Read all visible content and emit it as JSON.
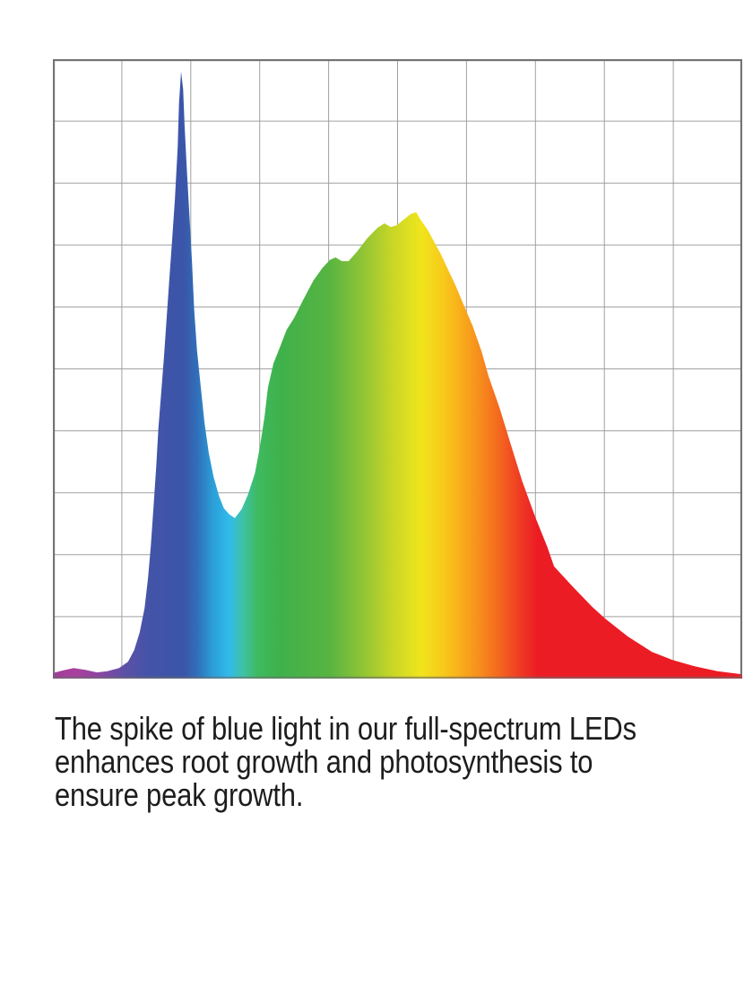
{
  "page": {
    "background": "#ffffff"
  },
  "caption": {
    "lines": [
      "The spike of blue light in our full-spectrum LEDs",
      "enhances root growth and photosynthesis to",
      "ensure peak growth."
    ],
    "color": "#1d1d1d"
  },
  "chart_data": {
    "type": "area",
    "title": "",
    "xlabel": "",
    "ylabel": "",
    "legend": "none",
    "tick_labels": "none visible (unlabeled 10x10 grid)",
    "x_unit": "percent across x-axis (violet to red end of LED spectrum)",
    "y_unit": "percent of y-axis (relative intensity)",
    "xlim": [
      0,
      100
    ],
    "ylim": [
      0,
      100
    ],
    "grid": {
      "columns": 10,
      "rows": 10,
      "grid_on": true,
      "line_color": "#a0a0a0",
      "border_color": "#7d7d7d"
    },
    "description": "Full-spectrum LED spectral power distribution: sharp blue spike near 18% of axis (peak ~98%), dip to ~26% intensity, broad green-yellow-red hump peaking ~75% intensity at mid-axis, long red tail decaying to ~1%",
    "points": [
      [
        0.0,
        0.9
      ],
      [
        1.4,
        1.3
      ],
      [
        3.0,
        1.7
      ],
      [
        4.7,
        1.4
      ],
      [
        6.4,
        1.0
      ],
      [
        7.9,
        1.2
      ],
      [
        9.6,
        1.7
      ],
      [
        10.9,
        2.7
      ],
      [
        11.8,
        4.6
      ],
      [
        12.6,
        7.5
      ],
      [
        13.3,
        11.4
      ],
      [
        13.8,
        16.2
      ],
      [
        14.2,
        21.3
      ],
      [
        14.6,
        27.8
      ],
      [
        15.0,
        34.3
      ],
      [
        15.3,
        40.4
      ],
      [
        15.7,
        45.9
      ],
      [
        16.1,
        51.7
      ],
      [
        16.5,
        58.2
      ],
      [
        16.9,
        64.7
      ],
      [
        17.3,
        70.8
      ],
      [
        17.7,
        77.4
      ],
      [
        18.1,
        85.7
      ],
      [
        18.3,
        92.9
      ],
      [
        18.6,
        98.0
      ],
      [
        18.9,
        95.1
      ],
      [
        19.1,
        89.3
      ],
      [
        19.4,
        82.8
      ],
      [
        19.8,
        74.8
      ],
      [
        20.2,
        66.9
      ],
      [
        20.5,
        59.6
      ],
      [
        20.9,
        53.1
      ],
      [
        21.5,
        46.6
      ],
      [
        22.0,
        41.2
      ],
      [
        22.6,
        36.5
      ],
      [
        23.3,
        32.6
      ],
      [
        24.1,
        29.5
      ],
      [
        24.8,
        27.5
      ],
      [
        25.6,
        26.5
      ],
      [
        26.4,
        25.9
      ],
      [
        27.4,
        27.4
      ],
      [
        28.3,
        29.7
      ],
      [
        29.3,
        33.1
      ],
      [
        30.0,
        37.2
      ],
      [
        30.7,
        42.3
      ],
      [
        31.2,
        47.0
      ],
      [
        32.0,
        50.9
      ],
      [
        32.9,
        53.4
      ],
      [
        33.9,
        56.3
      ],
      [
        35.0,
        58.2
      ],
      [
        36.3,
        61.1
      ],
      [
        37.8,
        64.3
      ],
      [
        39.1,
        66.3
      ],
      [
        40.2,
        67.6
      ],
      [
        41.0,
        68.0
      ],
      [
        41.9,
        67.4
      ],
      [
        42.9,
        67.4
      ],
      [
        44.1,
        68.9
      ],
      [
        45.6,
        71.1
      ],
      [
        47.1,
        72.8
      ],
      [
        48.1,
        73.5
      ],
      [
        49.0,
        72.9
      ],
      [
        49.9,
        73.2
      ],
      [
        51.0,
        74.2
      ],
      [
        51.9,
        75.0
      ],
      [
        52.7,
        75.3
      ],
      [
        53.4,
        74.0
      ],
      [
        54.4,
        72.4
      ],
      [
        55.3,
        70.5
      ],
      [
        56.3,
        68.5
      ],
      [
        57.3,
        66.1
      ],
      [
        58.4,
        63.5
      ],
      [
        59.6,
        60.3
      ],
      [
        60.9,
        56.9
      ],
      [
        62.2,
        52.8
      ],
      [
        63.2,
        48.8
      ],
      [
        64.8,
        43.7
      ],
      [
        66.4,
        37.9
      ],
      [
        68.1,
        31.8
      ],
      [
        70.0,
        26.0
      ],
      [
        71.7,
        21.3
      ],
      [
        72.7,
        18.1
      ],
      [
        75.2,
        15.1
      ],
      [
        78.2,
        11.6
      ],
      [
        80.1,
        9.7
      ],
      [
        83.4,
        6.8
      ],
      [
        86.9,
        4.3
      ],
      [
        89.9,
        3.0
      ],
      [
        93.1,
        2.0
      ],
      [
        96.4,
        1.2
      ],
      [
        100.0,
        0.7
      ]
    ],
    "gradient_stops": [
      {
        "offset": 0.0,
        "color": "#9e3e9b"
      },
      {
        "offset": 0.032,
        "color": "#ab3f9e"
      },
      {
        "offset": 0.07,
        "color": "#8846a3"
      },
      {
        "offset": 0.105,
        "color": "#5b50a7"
      },
      {
        "offset": 0.14,
        "color": "#4354a8"
      },
      {
        "offset": 0.19,
        "color": "#3a55a9"
      },
      {
        "offset": 0.21,
        "color": "#3070ba"
      },
      {
        "offset": 0.232,
        "color": "#2b9ed8"
      },
      {
        "offset": 0.256,
        "color": "#31bbea"
      },
      {
        "offset": 0.276,
        "color": "#3fc2a4"
      },
      {
        "offset": 0.298,
        "color": "#3eba5e"
      },
      {
        "offset": 0.33,
        "color": "#3fb14b"
      },
      {
        "offset": 0.4,
        "color": "#56b441"
      },
      {
        "offset": 0.45,
        "color": "#90c535"
      },
      {
        "offset": 0.492,
        "color": "#c8d626"
      },
      {
        "offset": 0.534,
        "color": "#f0e51c"
      },
      {
        "offset": 0.565,
        "color": "#f7cb1b"
      },
      {
        "offset": 0.59,
        "color": "#f8af1a"
      },
      {
        "offset": 0.62,
        "color": "#f78c1d"
      },
      {
        "offset": 0.65,
        "color": "#f4641f"
      },
      {
        "offset": 0.678,
        "color": "#ef3a23"
      },
      {
        "offset": 0.703,
        "color": "#ec1c24"
      },
      {
        "offset": 1.0,
        "color": "#ec1c24"
      }
    ]
  }
}
